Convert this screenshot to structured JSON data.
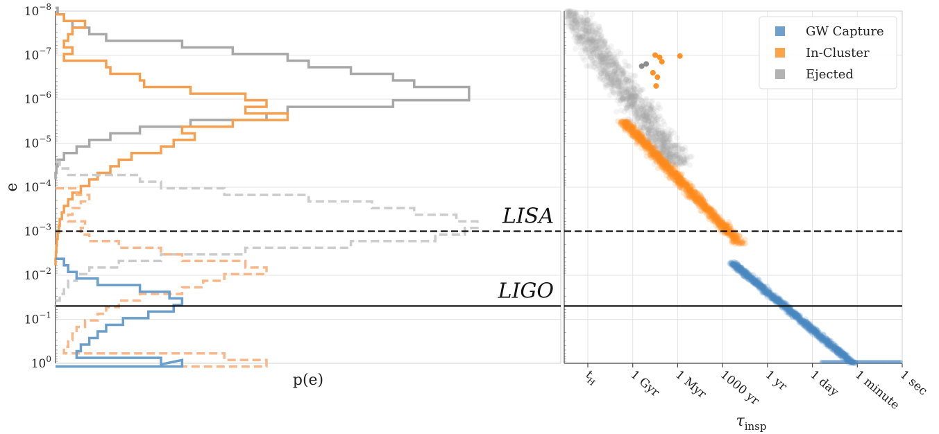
{
  "chart_data": [
    {
      "type": "histogram",
      "xlabel": "p(e)",
      "ylabel": "e",
      "y_scale": "log",
      "y_inverted": true,
      "ylim": [
        1e-08,
        1
      ],
      "y_ticks": [
        {
          "value": 1e-08,
          "base": "10",
          "exp": "−8"
        },
        {
          "value": 1e-07,
          "base": "10",
          "exp": "−7"
        },
        {
          "value": 1e-06,
          "base": "10",
          "exp": "−6"
        },
        {
          "value": 1e-05,
          "base": "10",
          "exp": "−5"
        },
        {
          "value": 0.0001,
          "base": "10",
          "exp": "−4"
        },
        {
          "value": 0.001,
          "base": "10",
          "exp": "−3"
        },
        {
          "value": 0.01,
          "base": "10",
          "exp": "−2"
        },
        {
          "value": 0.1,
          "base": "10",
          "exp": "−1"
        },
        {
          "value": 1,
          "base": "10",
          "exp": "0"
        }
      ],
      "thresholds": [
        {
          "label": "LISA",
          "e": 0.001,
          "style": "dashed"
        },
        {
          "label": "LIGO",
          "e": 0.05,
          "style": "solid"
        }
      ],
      "series": [
        {
          "color": "#a8a8a8",
          "linestyle": "solid",
          "e_log10": [
            -8.0,
            -7.85,
            -7.7,
            -7.55,
            -7.4,
            -7.25,
            -7.1,
            -6.95,
            -6.8,
            -6.65,
            -6.5,
            -6.35,
            -6.2,
            -6.05,
            -5.9,
            -5.75,
            -5.6,
            -5.45,
            -5.3,
            -5.15,
            -5.0,
            -4.85,
            -4.7,
            -4.55,
            -4.4,
            -4.25
          ],
          "p": [
            0.005,
            0.02,
            0.04,
            0.08,
            0.12,
            0.3,
            0.42,
            0.55,
            0.6,
            0.7,
            0.8,
            0.85,
            0.98,
            0.98,
            0.8,
            0.55,
            0.5,
            0.32,
            0.2,
            0.13,
            0.08,
            0.05,
            0.02,
            0.005,
            0.002,
            0.0
          ]
        },
        {
          "color": "#f5a050",
          "linestyle": "solid",
          "e_log10": [
            -7.85,
            -7.7,
            -7.55,
            -7.4,
            -7.25,
            -7.1,
            -6.95,
            -6.8,
            -6.65,
            -6.5,
            -6.35,
            -6.2,
            -6.05,
            -5.9,
            -5.75,
            -5.6,
            -5.45,
            -5.3,
            -5.15,
            -5.0,
            -4.85,
            -4.7,
            -4.55,
            -4.4,
            -4.25,
            -4.1,
            -3.95,
            -3.8,
            -3.65,
            -3.5,
            -3.35,
            -3.2,
            -3.05,
            -2.9,
            -2.75,
            -2.6,
            -2.45,
            -2.3
          ],
          "p": [
            0.02,
            0.07,
            0.04,
            0.03,
            0.02,
            0.04,
            0.02,
            0.12,
            0.13,
            0.2,
            0.21,
            0.32,
            0.45,
            0.5,
            0.45,
            0.55,
            0.42,
            0.3,
            0.33,
            0.28,
            0.25,
            0.18,
            0.15,
            0.13,
            0.1,
            0.08,
            0.06,
            0.04,
            0.03,
            0.02,
            0.015,
            0.01,
            0.008,
            0.005,
            0.003,
            0.002,
            0.001,
            0.0
          ]
        },
        {
          "color": "#cccccc",
          "linestyle": "dashed",
          "e_log10": [
            -4.5,
            -4.35,
            -4.2,
            -4.05,
            -3.9,
            -3.75,
            -3.6,
            -3.45,
            -3.3,
            -3.15,
            -3.0,
            -2.85,
            -2.7,
            -2.55,
            -2.4,
            -2.25,
            -2.1,
            -1.95,
            -1.8,
            -1.65,
            -1.5,
            -1.35
          ],
          "p": [
            0.01,
            0.03,
            0.2,
            0.25,
            0.4,
            0.6,
            0.75,
            0.85,
            0.95,
            1.0,
            0.97,
            0.9,
            0.7,
            0.45,
            0.25,
            0.15,
            0.08,
            0.05,
            0.03,
            0.02,
            0.01,
            0.0
          ]
        },
        {
          "color": "#f8b88a",
          "linestyle": "dashed",
          "e_log10": [
            -3.9,
            -3.75,
            -3.6,
            -3.45,
            -3.3,
            -3.15,
            -3.0,
            -2.85,
            -2.7,
            -2.55,
            -2.4,
            -2.25,
            -2.1,
            -1.95,
            -1.8,
            -1.65,
            -1.5,
            -1.35,
            -1.2,
            -1.05,
            -0.9,
            -0.75,
            -0.6,
            -0.45,
            -0.3,
            -0.15,
            0.0
          ],
          "p": [
            0.05,
            0.08,
            0.06,
            0.04,
            0.03,
            0.07,
            0.06,
            0.08,
            0.15,
            0.25,
            0.3,
            0.45,
            0.5,
            0.4,
            0.35,
            0.3,
            0.2,
            0.15,
            0.12,
            0.1,
            0.07,
            0.05,
            0.04,
            0.03,
            0.02,
            0.4,
            0.5
          ]
        },
        {
          "color": "#6a9ecb",
          "linestyle": "solid",
          "e_log10": [
            -2.3,
            -2.15,
            -2.0,
            -1.85,
            -1.7,
            -1.55,
            -1.4,
            -1.25,
            -1.1,
            -0.95,
            -0.8,
            -0.65,
            -0.5,
            -0.35,
            -0.2,
            -0.05,
            0.0
          ],
          "p": [
            0.02,
            0.03,
            0.05,
            0.1,
            0.2,
            0.27,
            0.3,
            0.28,
            0.22,
            0.16,
            0.12,
            0.1,
            0.08,
            0.06,
            0.05,
            0.25,
            0.3
          ]
        }
      ]
    },
    {
      "type": "scatter",
      "xlabel": "τ",
      "xlabel_sub": "insp",
      "y_scale": "log",
      "y_inverted": true,
      "ylim": [
        1e-08,
        1
      ],
      "x_ticks": [
        "t",
        "1 Gyr",
        "1 Myr",
        "1000 yr",
        "1 yr",
        "1 day",
        "1 minute",
        "1 sec"
      ],
      "x_tick_sub": "H",
      "legend": {
        "position": "top-right",
        "entries": [
          {
            "label": "GW Capture",
            "color": "#4a88c0"
          },
          {
            "label": "In-Cluster",
            "color": "#ff8c1a"
          },
          {
            "label": "Ejected",
            "color": "#a0a0a0"
          }
        ]
      },
      "thresholds": [
        {
          "e": 0.001,
          "style": "dashed"
        },
        {
          "e": 0.05,
          "style": "solid"
        }
      ],
      "clouds": [
        {
          "name": "Ejected",
          "color": "#a8a8a8",
          "opacity": 0.12,
          "x_tick_index_range": [
            -0.4,
            2.0
          ],
          "log_e_range": [
            -8.0,
            -4.5
          ],
          "trend_slope": 1.45,
          "spread": 0.9
        },
        {
          "name": "In-Cluster",
          "color": "#ff8c1a",
          "opacity": 0.18,
          "x_tick_index_range": [
            0.8,
            3.4
          ],
          "log_e_range": [
            -5.5,
            -2.7
          ],
          "trend_slope": 1.08,
          "spread": 0.35
        },
        {
          "name": "GW Capture",
          "color": "#4a88c0",
          "opacity": 0.16,
          "x_tick_index_range": [
            3.2,
            5.9
          ],
          "log_e_range": [
            -2.3,
            0.0
          ],
          "trend_slope": 0.9,
          "spread": 0.25
        }
      ],
      "highlight_points": [
        {
          "tick_index": 1.5,
          "log_e": -7.0,
          "color": "#ff8c1a"
        },
        {
          "tick_index": 1.6,
          "log_e": -6.95,
          "color": "#ff8c1a"
        },
        {
          "tick_index": 1.65,
          "log_e": -6.85,
          "color": "#ff8c1a"
        },
        {
          "tick_index": 1.55,
          "log_e": -6.5,
          "color": "#ff8c1a"
        },
        {
          "tick_index": 1.52,
          "log_e": -6.3,
          "color": "#ff8c1a"
        },
        {
          "tick_index": 2.05,
          "log_e": -6.98,
          "color": "#ff8c1a"
        },
        {
          "tick_index": 1.45,
          "log_e": -6.6,
          "color": "#ff8c1a"
        },
        {
          "tick_index": 1.3,
          "log_e": -6.8,
          "color": "#888888"
        },
        {
          "tick_index": 1.2,
          "log_e": -6.75,
          "color": "#888888"
        }
      ]
    }
  ]
}
